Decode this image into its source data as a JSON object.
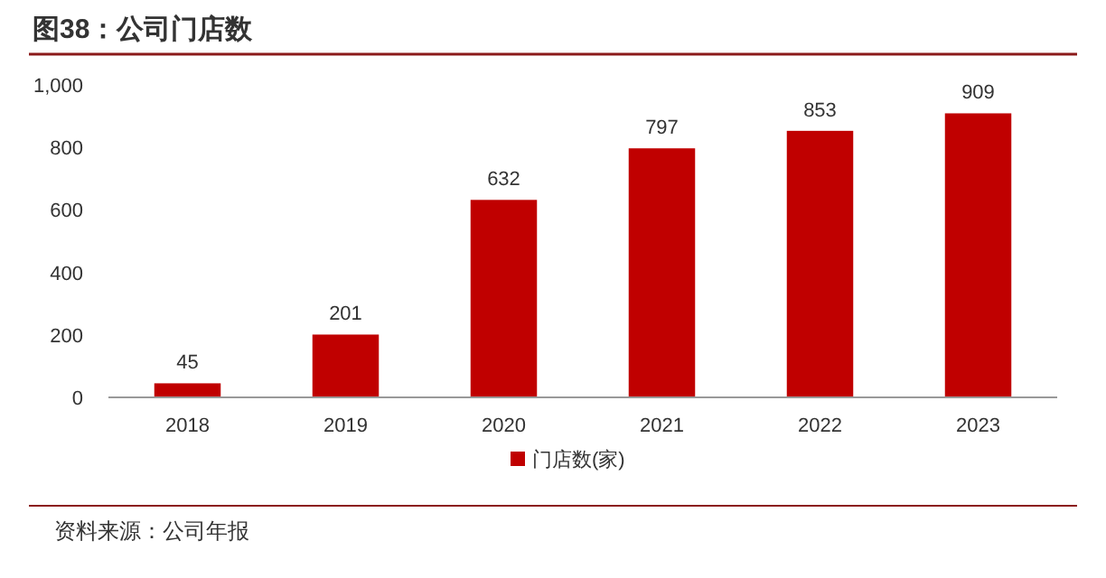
{
  "chart_data": {
    "type": "bar",
    "title": "图38：公司门店数",
    "categories": [
      "2018",
      "2019",
      "2020",
      "2021",
      "2022",
      "2023"
    ],
    "series": [
      {
        "name": "门店数(家)",
        "color": "#c00000",
        "values": [
          45,
          201,
          632,
          797,
          853,
          909
        ]
      }
    ],
    "ylim": [
      0,
      1000
    ],
    "yticks": [
      0,
      200,
      400,
      600,
      800,
      {
        "value": 1000,
        "label": "1,000"
      }
    ],
    "data_labels": true,
    "legend": "bottom",
    "grid": false,
    "annotations": [
      "资料来源：公司年报"
    ]
  }
}
